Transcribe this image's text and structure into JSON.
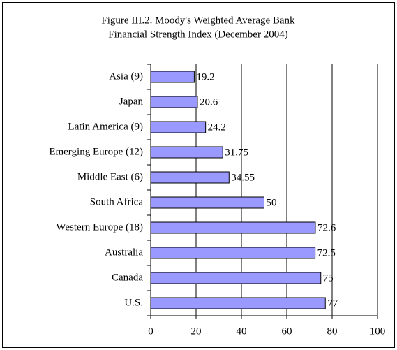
{
  "chart_data": {
    "type": "hbar",
    "title": [
      "Figure III.2. Moody's Weighted Average Bank",
      "Financial Strength Index (December 2004)"
    ],
    "categories": [
      "Asia (9)",
      "Japan",
      "Latin America (9)",
      "Emerging Europe (12)",
      "Middle East (6)",
      "South Africa",
      "Western Europe (18)",
      "Australia",
      "Canada",
      "U.S."
    ],
    "values": [
      19.2,
      20.6,
      24.2,
      31.75,
      34.55,
      50,
      72.6,
      72.5,
      75,
      77
    ],
    "color": "#9999ff",
    "xlim": [
      0,
      100
    ],
    "xticks": [
      0,
      20,
      40,
      60,
      80,
      100
    ],
    "grid": true
  }
}
